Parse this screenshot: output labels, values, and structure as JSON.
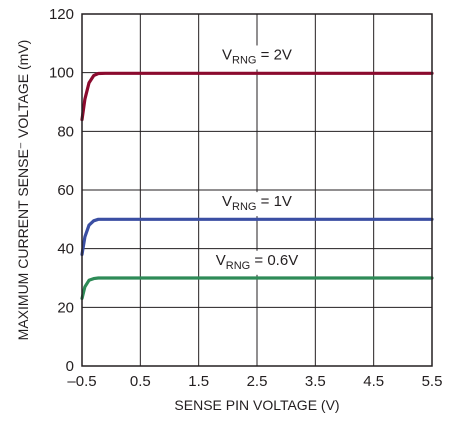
{
  "chart_data": {
    "type": "line",
    "xlabel": "SENSE PIN VOLTAGE (V)",
    "ylabel": "MAXIMUM CURRENT SENSE⁻ VOLTAGE (mV)",
    "xlim": [
      -0.5,
      5.5
    ],
    "ylim": [
      0,
      120
    ],
    "xticks": [
      -0.5,
      0.5,
      1.5,
      2.5,
      3.5,
      4.5,
      5.5
    ],
    "xtick_labels": [
      "–0.5",
      "0.5",
      "1.5",
      "2.5",
      "3.5",
      "4.5",
      "5.5"
    ],
    "yticks": [
      0,
      20,
      40,
      60,
      80,
      100,
      120
    ],
    "ytick_labels": [
      "0",
      "20",
      "40",
      "60",
      "80",
      "100",
      "120"
    ],
    "grid": true,
    "series": [
      {
        "name": "V_RNG = 2V",
        "color": "#8b0a2e",
        "x": [
          -0.5,
          -0.45,
          -0.38,
          -0.3,
          -0.22,
          -0.1,
          0.5,
          1.5,
          2.5,
          3.5,
          4.5,
          5.5
        ],
        "y": [
          84,
          91,
          96.5,
          99,
          99.7,
          99.8,
          99.8,
          99.8,
          99.8,
          99.8,
          99.8,
          99.8
        ]
      },
      {
        "name": "V_RNG = 1V",
        "color": "#3b4fa3",
        "x": [
          -0.5,
          -0.45,
          -0.38,
          -0.3,
          -0.22,
          -0.1,
          0.5,
          1.5,
          2.5,
          3.5,
          4.5,
          5.5
        ],
        "y": [
          38,
          44,
          48,
          49.5,
          50,
          50,
          50,
          50,
          50,
          50,
          50,
          50
        ]
      },
      {
        "name": "V_RNG = 0.6V",
        "color": "#2e8b57",
        "x": [
          -0.5,
          -0.45,
          -0.38,
          -0.3,
          -0.22,
          -0.1,
          0.5,
          1.5,
          2.5,
          3.5,
          4.5,
          5.5
        ],
        "y": [
          23,
          27,
          29.2,
          29.8,
          30,
          30,
          30,
          30,
          30,
          30,
          30,
          30
        ]
      }
    ],
    "annotations": [
      {
        "prefix": "V",
        "sub": "RNG",
        "suffix": " = 2V",
        "x": 2.5,
        "y": 104.5
      },
      {
        "prefix": "V",
        "sub": "RNG",
        "suffix": " = 1V",
        "x": 2.5,
        "y": 54.5
      },
      {
        "prefix": "V",
        "sub": "RNG",
        "suffix": " = 0.6V",
        "x": 2.5,
        "y": 34.5
      }
    ]
  }
}
